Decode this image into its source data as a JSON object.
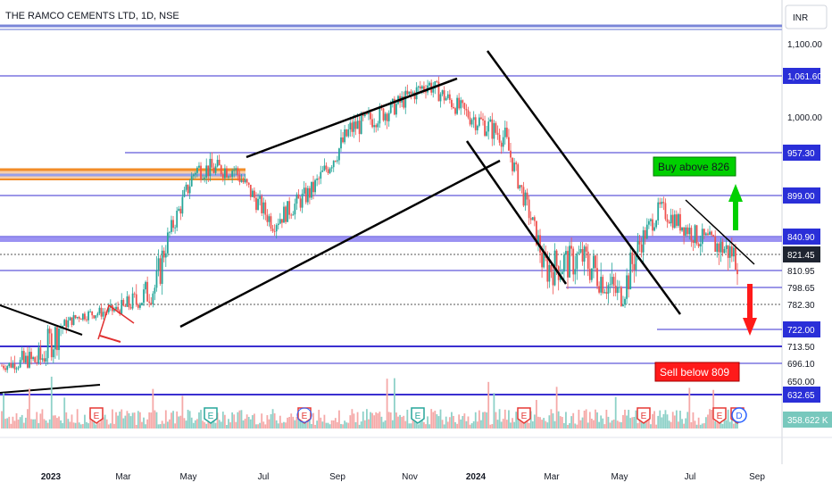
{
  "chart_data": {
    "type": "candlestick",
    "title": "THE RAMCO CEMENTS LTD, 1D, NSE",
    "currency": "INR",
    "x_ticks": [
      "2023",
      "Mar",
      "May",
      "Jul",
      "Sep",
      "Nov",
      "2024",
      "Mar",
      "May",
      "Jul",
      "Sep"
    ],
    "y_ticks": [
      "1,100.00",
      "1,000.00",
      "650.00"
    ],
    "price_levels": [
      {
        "label": "1,061.60",
        "value": 1061.6,
        "style": "box-blue"
      },
      {
        "label": "957.30",
        "value": 957.3,
        "style": "box-blue"
      },
      {
        "label": "899.00",
        "value": 899.0,
        "style": "box-blue"
      },
      {
        "label": "840.90",
        "value": 840.9,
        "style": "box-blue"
      },
      {
        "label": "821.45",
        "value": 821.45,
        "style": "box-dark"
      },
      {
        "label": "810.95",
        "value": 810.95,
        "style": "plain"
      },
      {
        "label": "798.65",
        "value": 798.65,
        "style": "plain"
      },
      {
        "label": "782.30",
        "value": 782.3,
        "style": "plain"
      },
      {
        "label": "722.00",
        "value": 722.0,
        "style": "box-blue"
      },
      {
        "label": "713.50",
        "value": 713.5,
        "style": "plain"
      },
      {
        "label": "696.10",
        "value": 696.1,
        "style": "plain"
      },
      {
        "label": "632.65",
        "value": 632.65,
        "style": "box-blue"
      }
    ],
    "volume_label": "358.622 K",
    "annotations": [
      {
        "text": "Buy above 826",
        "color": "#00d000",
        "text_color": "#131722"
      },
      {
        "text": "Sell below 809",
        "color": "#ff0000",
        "text_color": "#ffffff"
      }
    ],
    "event_markers": [
      "E",
      "E",
      "E",
      "E",
      "E",
      "E",
      "E",
      "E",
      "D"
    ],
    "series": [
      {
        "date": "2023-01",
        "close": 690
      },
      {
        "date": "2023-02",
        "close": 700
      },
      {
        "date": "2023-03",
        "close": 755
      },
      {
        "date": "2023-04",
        "close": 770
      },
      {
        "date": "2023-05",
        "close": 800
      },
      {
        "date": "2023-06",
        "close": 935
      },
      {
        "date": "2023-07",
        "close": 935
      },
      {
        "date": "2023-08",
        "close": 860
      },
      {
        "date": "2023-09",
        "close": 905
      },
      {
        "date": "2023-10",
        "close": 985
      },
      {
        "date": "2023-11",
        "close": 1010
      },
      {
        "date": "2023-12",
        "close": 1050
      },
      {
        "date": "2024-01",
        "close": 1005
      },
      {
        "date": "2024-02",
        "close": 975
      },
      {
        "date": "2024-03",
        "close": 812
      },
      {
        "date": "2024-04",
        "close": 820
      },
      {
        "date": "2024-05",
        "close": 790
      },
      {
        "date": "2024-06",
        "close": 880
      },
      {
        "date": "2024-07",
        "close": 840
      },
      {
        "date": "2024-08",
        "close": 821.45
      }
    ],
    "colors": {
      "up": "#26a69a",
      "down": "#ef5350",
      "level": "#3a2fd0",
      "accent": "#2962ff"
    }
  }
}
